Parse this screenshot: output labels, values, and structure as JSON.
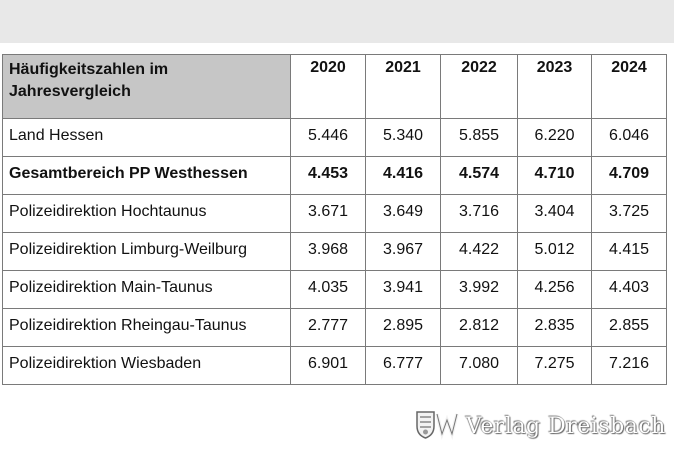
{
  "table": {
    "header_label": "Häufigkeitszahlen im Jahresvergleich",
    "years": [
      "2020",
      "2021",
      "2022",
      "2023",
      "2024"
    ],
    "rows": [
      {
        "label": "Land Hessen",
        "bold": false,
        "values": [
          "5.446",
          "5.340",
          "5.855",
          "6.220",
          "6.046"
        ]
      },
      {
        "label": "Gesamtbereich PP Westhessen",
        "bold": true,
        "values": [
          "4.453",
          "4.416",
          "4.574",
          "4.710",
          "4.709"
        ]
      },
      {
        "label": "Polizeidirektion Hochtaunus",
        "bold": false,
        "values": [
          "3.671",
          "3.649",
          "3.716",
          "3.404",
          "3.725"
        ]
      },
      {
        "label": "Polizeidirektion Limburg-Weilburg",
        "bold": false,
        "values": [
          "3.968",
          "3.967",
          "4.422",
          "5.012",
          "4.415"
        ]
      },
      {
        "label": "Polizeidirektion Main-Taunus",
        "bold": false,
        "values": [
          "4.035",
          "3.941",
          "3.992",
          "4.256",
          "4.403"
        ]
      },
      {
        "label": "Polizeidirektion Rheingau-Taunus",
        "bold": false,
        "values": [
          "2.777",
          "2.895",
          "2.812",
          "2.835",
          "2.855"
        ]
      },
      {
        "label": "Polizeidirektion Wiesbaden",
        "bold": false,
        "values": [
          "6.901",
          "6.777",
          "7.080",
          "7.275",
          "7.216"
        ]
      }
    ]
  },
  "watermark": {
    "text": "Verlag Dreisbach",
    "icon": "publisher-crest-icon"
  },
  "colors": {
    "header_fill": "#c6c6c6",
    "border": "#7a7a7a",
    "page_background": "#e8e8e8"
  }
}
